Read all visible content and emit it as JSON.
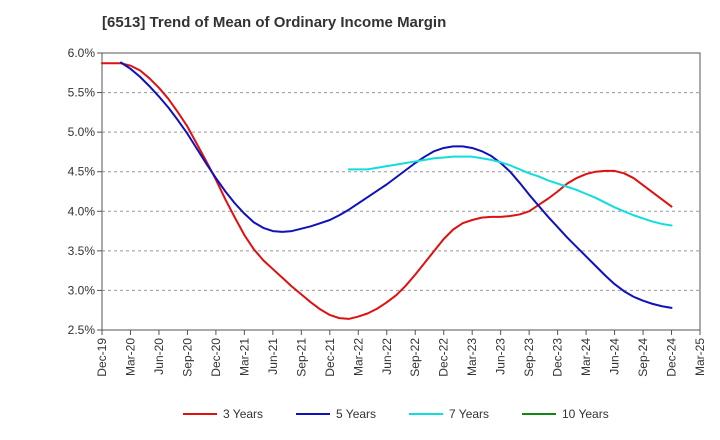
{
  "chart_data": {
    "type": "line",
    "title": "[6513]  Trend of Mean of Ordinary Income Margin",
    "xlabel": "",
    "ylabel": "",
    "x_ticks": [
      "Dec-19",
      "Mar-20",
      "Jun-20",
      "Sep-20",
      "Dec-20",
      "Mar-21",
      "Jun-21",
      "Sep-21",
      "Dec-21",
      "Mar-22",
      "Jun-22",
      "Sep-22",
      "Dec-22",
      "Mar-23",
      "Jun-23",
      "Sep-23",
      "Dec-23",
      "Mar-24",
      "Jun-24",
      "Sep-24",
      "Dec-24",
      "Mar-25"
    ],
    "y_ticks": [
      2.5,
      3.0,
      3.5,
      4.0,
      4.5,
      5.0,
      5.5,
      6.0
    ],
    "y_tick_labels": [
      "2.5%",
      "3.0%",
      "3.5%",
      "4.0%",
      "4.5%",
      "5.0%",
      "5.5%",
      "6.0%"
    ],
    "ylim": [
      2.5,
      6.0
    ],
    "grid": "horizontal dashed",
    "legend_position": "bottom",
    "series": [
      {
        "name": "3 Years",
        "color": "#dd1111",
        "points": [
          [
            "Dec-19",
            5.87
          ],
          [
            "Feb-20",
            5.87
          ],
          [
            "Mar-20",
            5.84
          ],
          [
            "Apr-20",
            5.78
          ],
          [
            "May-20",
            5.68
          ],
          [
            "Jun-20",
            5.56
          ],
          [
            "Jul-20",
            5.42
          ],
          [
            "Aug-20",
            5.25
          ],
          [
            "Sep-20",
            5.07
          ],
          [
            "Oct-20",
            4.85
          ],
          [
            "Nov-20",
            4.63
          ],
          [
            "Dec-20",
            4.4
          ],
          [
            "Jan-21",
            4.15
          ],
          [
            "Feb-21",
            3.92
          ],
          [
            "Mar-21",
            3.7
          ],
          [
            "Apr-21",
            3.52
          ],
          [
            "May-21",
            3.38
          ],
          [
            "Jun-21",
            3.27
          ],
          [
            "Jul-21",
            3.16
          ],
          [
            "Aug-21",
            3.05
          ],
          [
            "Sep-21",
            2.95
          ],
          [
            "Oct-21",
            2.85
          ],
          [
            "Nov-21",
            2.76
          ],
          [
            "Dec-21",
            2.69
          ],
          [
            "Jan-22",
            2.65
          ],
          [
            "Feb-22",
            2.64
          ],
          [
            "Mar-22",
            2.67
          ],
          [
            "Apr-22",
            2.71
          ],
          [
            "May-22",
            2.77
          ],
          [
            "Jun-22",
            2.85
          ],
          [
            "Jul-22",
            2.94
          ],
          [
            "Aug-22",
            3.06
          ],
          [
            "Sep-22",
            3.2
          ],
          [
            "Oct-22",
            3.35
          ],
          [
            "Nov-22",
            3.5
          ],
          [
            "Dec-22",
            3.65
          ],
          [
            "Jan-23",
            3.77
          ],
          [
            "Feb-23",
            3.85
          ],
          [
            "Mar-23",
            3.89
          ],
          [
            "Apr-23",
            3.92
          ],
          [
            "May-23",
            3.93
          ],
          [
            "Jun-23",
            3.93
          ],
          [
            "Jul-23",
            3.94
          ],
          [
            "Aug-23",
            3.96
          ],
          [
            "Sep-23",
            4.0
          ],
          [
            "Oct-23",
            4.08
          ],
          [
            "Nov-23",
            4.16
          ],
          [
            "Dec-23",
            4.25
          ],
          [
            "Jan-24",
            4.35
          ],
          [
            "Feb-24",
            4.42
          ],
          [
            "Mar-24",
            4.47
          ],
          [
            "Apr-24",
            4.5
          ],
          [
            "May-24",
            4.51
          ],
          [
            "Jun-24",
            4.51
          ],
          [
            "Jul-24",
            4.48
          ],
          [
            "Aug-24",
            4.42
          ],
          [
            "Sep-24",
            4.33
          ],
          [
            "Oct-24",
            4.24
          ],
          [
            "Nov-24",
            4.15
          ],
          [
            "Dec-24",
            4.06
          ]
        ]
      },
      {
        "name": "5 Years",
        "color": "#1111bb",
        "points": [
          [
            "Feb-20",
            5.88
          ],
          [
            "Mar-20",
            5.8
          ],
          [
            "Apr-20",
            5.7
          ],
          [
            "May-20",
            5.58
          ],
          [
            "Jun-20",
            5.45
          ],
          [
            "Jul-20",
            5.31
          ],
          [
            "Aug-20",
            5.15
          ],
          [
            "Sep-20",
            4.98
          ],
          [
            "Oct-20",
            4.79
          ],
          [
            "Nov-20",
            4.6
          ],
          [
            "Dec-20",
            4.42
          ],
          [
            "Jan-21",
            4.25
          ],
          [
            "Feb-21",
            4.1
          ],
          [
            "Mar-21",
            3.97
          ],
          [
            "Apr-21",
            3.86
          ],
          [
            "May-21",
            3.79
          ],
          [
            "Jun-21",
            3.75
          ],
          [
            "Jul-21",
            3.74
          ],
          [
            "Aug-21",
            3.75
          ],
          [
            "Sep-21",
            3.78
          ],
          [
            "Oct-21",
            3.81
          ],
          [
            "Nov-21",
            3.85
          ],
          [
            "Dec-21",
            3.89
          ],
          [
            "Jan-22",
            3.95
          ],
          [
            "Feb-22",
            4.02
          ],
          [
            "Mar-22",
            4.1
          ],
          [
            "Apr-22",
            4.18
          ],
          [
            "May-22",
            4.26
          ],
          [
            "Jun-22",
            4.34
          ],
          [
            "Jul-22",
            4.43
          ],
          [
            "Aug-22",
            4.52
          ],
          [
            "Sep-22",
            4.61
          ],
          [
            "Oct-22",
            4.69
          ],
          [
            "Nov-22",
            4.76
          ],
          [
            "Dec-22",
            4.8
          ],
          [
            "Jan-23",
            4.82
          ],
          [
            "Feb-23",
            4.82
          ],
          [
            "Mar-23",
            4.8
          ],
          [
            "Apr-23",
            4.76
          ],
          [
            "May-23",
            4.7
          ],
          [
            "Jun-23",
            4.61
          ],
          [
            "Jul-23",
            4.5
          ],
          [
            "Aug-23",
            4.36
          ],
          [
            "Sep-23",
            4.21
          ],
          [
            "Oct-23",
            4.07
          ],
          [
            "Nov-23",
            3.93
          ],
          [
            "Dec-23",
            3.8
          ],
          [
            "Jan-24",
            3.67
          ],
          [
            "Feb-24",
            3.55
          ],
          [
            "Mar-24",
            3.43
          ],
          [
            "Apr-24",
            3.31
          ],
          [
            "May-24",
            3.19
          ],
          [
            "Jun-24",
            3.08
          ],
          [
            "Jul-24",
            2.99
          ],
          [
            "Aug-24",
            2.92
          ],
          [
            "Sep-24",
            2.87
          ],
          [
            "Oct-24",
            2.83
          ],
          [
            "Nov-24",
            2.8
          ],
          [
            "Dec-24",
            2.78
          ]
        ]
      },
      {
        "name": "7 Years",
        "color": "#11dddd",
        "points": [
          [
            "Feb-22",
            4.53
          ],
          [
            "Mar-22",
            4.53
          ],
          [
            "Apr-22",
            4.53
          ],
          [
            "May-22",
            4.55
          ],
          [
            "Jun-22",
            4.57
          ],
          [
            "Jul-22",
            4.59
          ],
          [
            "Aug-22",
            4.61
          ],
          [
            "Sep-22",
            4.63
          ],
          [
            "Oct-22",
            4.65
          ],
          [
            "Nov-22",
            4.67
          ],
          [
            "Dec-22",
            4.68
          ],
          [
            "Jan-23",
            4.69
          ],
          [
            "Feb-23",
            4.69
          ],
          [
            "Mar-23",
            4.69
          ],
          [
            "Apr-23",
            4.67
          ],
          [
            "May-23",
            4.65
          ],
          [
            "Jun-23",
            4.62
          ],
          [
            "Jul-23",
            4.58
          ],
          [
            "Aug-23",
            4.53
          ],
          [
            "Sep-23",
            4.48
          ],
          [
            "Oct-23",
            4.44
          ],
          [
            "Nov-23",
            4.39
          ],
          [
            "Dec-23",
            4.35
          ],
          [
            "Jan-24",
            4.31
          ],
          [
            "Feb-24",
            4.27
          ],
          [
            "Mar-24",
            4.22
          ],
          [
            "Apr-24",
            4.17
          ],
          [
            "May-24",
            4.11
          ],
          [
            "Jun-24",
            4.05
          ],
          [
            "Jul-24",
            4.0
          ],
          [
            "Aug-24",
            3.95
          ],
          [
            "Sep-24",
            3.91
          ],
          [
            "Oct-24",
            3.87
          ],
          [
            "Nov-24",
            3.84
          ],
          [
            "Dec-24",
            3.82
          ]
        ]
      },
      {
        "name": "10 Years",
        "color": "#118811",
        "points": []
      }
    ]
  }
}
